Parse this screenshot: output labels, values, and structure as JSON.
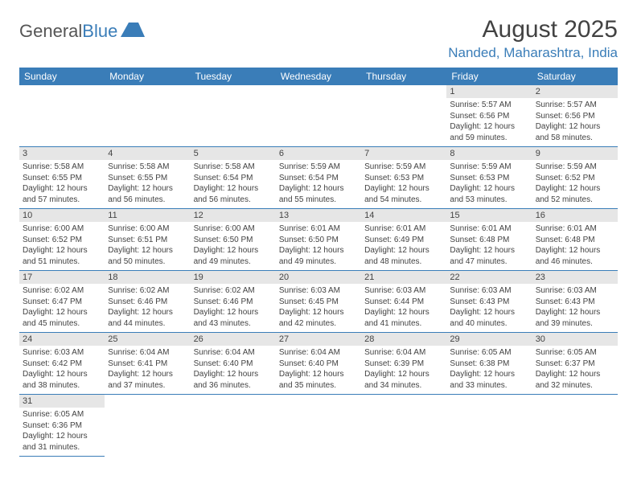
{
  "logo": {
    "text1": "General",
    "text2": "Blue"
  },
  "title": "August 2025",
  "location": "Nanded, Maharashtra, India",
  "weekdays": [
    "Sunday",
    "Monday",
    "Tuesday",
    "Wednesday",
    "Thursday",
    "Friday",
    "Saturday"
  ],
  "leading_blanks": 5,
  "days": [
    {
      "n": "1",
      "sr": "5:57 AM",
      "ss": "6:56 PM",
      "dl": "12 hours and 59 minutes."
    },
    {
      "n": "2",
      "sr": "5:57 AM",
      "ss": "6:56 PM",
      "dl": "12 hours and 58 minutes."
    },
    {
      "n": "3",
      "sr": "5:58 AM",
      "ss": "6:55 PM",
      "dl": "12 hours and 57 minutes."
    },
    {
      "n": "4",
      "sr": "5:58 AM",
      "ss": "6:55 PM",
      "dl": "12 hours and 56 minutes."
    },
    {
      "n": "5",
      "sr": "5:58 AM",
      "ss": "6:54 PM",
      "dl": "12 hours and 56 minutes."
    },
    {
      "n": "6",
      "sr": "5:59 AM",
      "ss": "6:54 PM",
      "dl": "12 hours and 55 minutes."
    },
    {
      "n": "7",
      "sr": "5:59 AM",
      "ss": "6:53 PM",
      "dl": "12 hours and 54 minutes."
    },
    {
      "n": "8",
      "sr": "5:59 AM",
      "ss": "6:53 PM",
      "dl": "12 hours and 53 minutes."
    },
    {
      "n": "9",
      "sr": "5:59 AM",
      "ss": "6:52 PM",
      "dl": "12 hours and 52 minutes."
    },
    {
      "n": "10",
      "sr": "6:00 AM",
      "ss": "6:52 PM",
      "dl": "12 hours and 51 minutes."
    },
    {
      "n": "11",
      "sr": "6:00 AM",
      "ss": "6:51 PM",
      "dl": "12 hours and 50 minutes."
    },
    {
      "n": "12",
      "sr": "6:00 AM",
      "ss": "6:50 PM",
      "dl": "12 hours and 49 minutes."
    },
    {
      "n": "13",
      "sr": "6:01 AM",
      "ss": "6:50 PM",
      "dl": "12 hours and 49 minutes."
    },
    {
      "n": "14",
      "sr": "6:01 AM",
      "ss": "6:49 PM",
      "dl": "12 hours and 48 minutes."
    },
    {
      "n": "15",
      "sr": "6:01 AM",
      "ss": "6:48 PM",
      "dl": "12 hours and 47 minutes."
    },
    {
      "n": "16",
      "sr": "6:01 AM",
      "ss": "6:48 PM",
      "dl": "12 hours and 46 minutes."
    },
    {
      "n": "17",
      "sr": "6:02 AM",
      "ss": "6:47 PM",
      "dl": "12 hours and 45 minutes."
    },
    {
      "n": "18",
      "sr": "6:02 AM",
      "ss": "6:46 PM",
      "dl": "12 hours and 44 minutes."
    },
    {
      "n": "19",
      "sr": "6:02 AM",
      "ss": "6:46 PM",
      "dl": "12 hours and 43 minutes."
    },
    {
      "n": "20",
      "sr": "6:03 AM",
      "ss": "6:45 PM",
      "dl": "12 hours and 42 minutes."
    },
    {
      "n": "21",
      "sr": "6:03 AM",
      "ss": "6:44 PM",
      "dl": "12 hours and 41 minutes."
    },
    {
      "n": "22",
      "sr": "6:03 AM",
      "ss": "6:43 PM",
      "dl": "12 hours and 40 minutes."
    },
    {
      "n": "23",
      "sr": "6:03 AM",
      "ss": "6:43 PM",
      "dl": "12 hours and 39 minutes."
    },
    {
      "n": "24",
      "sr": "6:03 AM",
      "ss": "6:42 PM",
      "dl": "12 hours and 38 minutes."
    },
    {
      "n": "25",
      "sr": "6:04 AM",
      "ss": "6:41 PM",
      "dl": "12 hours and 37 minutes."
    },
    {
      "n": "26",
      "sr": "6:04 AM",
      "ss": "6:40 PM",
      "dl": "12 hours and 36 minutes."
    },
    {
      "n": "27",
      "sr": "6:04 AM",
      "ss": "6:40 PM",
      "dl": "12 hours and 35 minutes."
    },
    {
      "n": "28",
      "sr": "6:04 AM",
      "ss": "6:39 PM",
      "dl": "12 hours and 34 minutes."
    },
    {
      "n": "29",
      "sr": "6:05 AM",
      "ss": "6:38 PM",
      "dl": "12 hours and 33 minutes."
    },
    {
      "n": "30",
      "sr": "6:05 AM",
      "ss": "6:37 PM",
      "dl": "12 hours and 32 minutes."
    },
    {
      "n": "31",
      "sr": "6:05 AM",
      "ss": "6:36 PM",
      "dl": "12 hours and 31 minutes."
    }
  ],
  "labels": {
    "sunrise": "Sunrise: ",
    "sunset": "Sunset: ",
    "daylight": "Daylight: "
  }
}
